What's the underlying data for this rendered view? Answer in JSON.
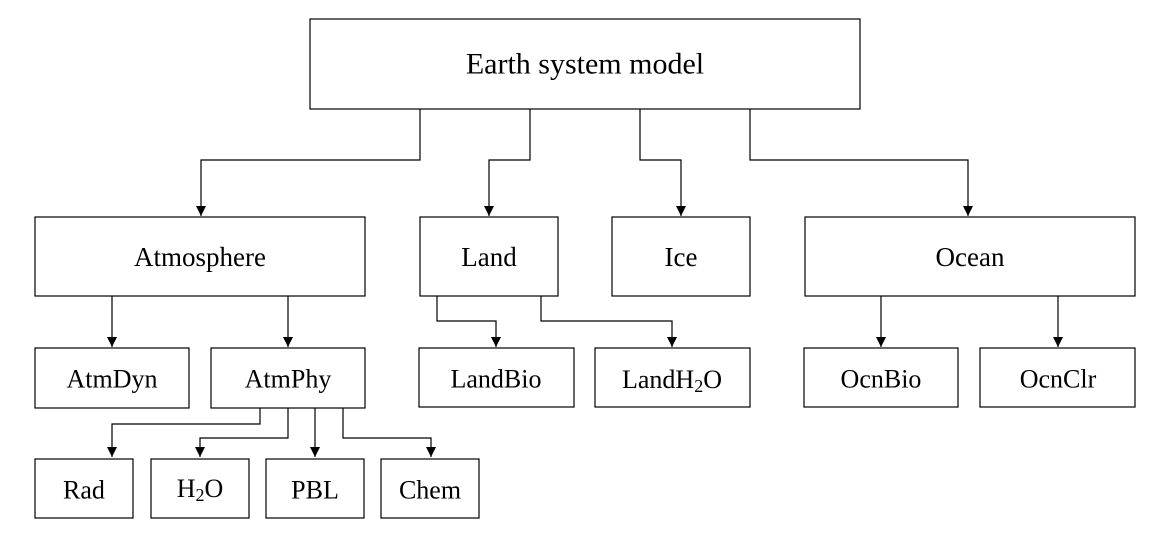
{
  "diagram": {
    "root": "Earth system model",
    "components": {
      "atmosphere": "Atmosphere",
      "land": "Land",
      "ice": "Ice",
      "ocean": "Ocean"
    },
    "atmosphere_children": {
      "dyn": "AtmDyn",
      "phy": "AtmPhy"
    },
    "atmphy_children": {
      "rad": "Rad",
      "h2o_main": "H",
      "h2o_sub": "2",
      "h2o_tail": "O",
      "pbl": "PBL",
      "chem": "Chem"
    },
    "land_children": {
      "bio": "LandBio",
      "h2o_main": "LandH",
      "h2o_sub": "2",
      "h2o_tail": "O"
    },
    "ocean_children": {
      "bio": "OcnBio",
      "clr": "OcnClr"
    }
  }
}
